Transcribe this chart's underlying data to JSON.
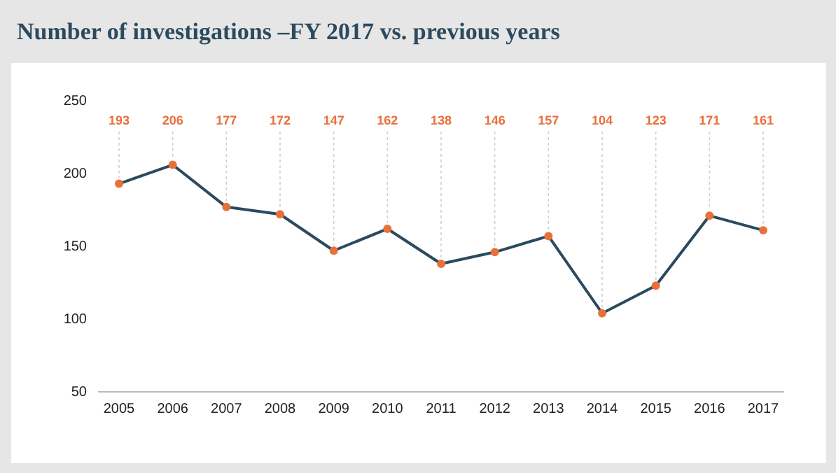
{
  "chart_data": {
    "type": "line",
    "title": "Number of investigations –FY 2017 vs. previous years",
    "categories": [
      "2005",
      "2006",
      "2007",
      "2008",
      "2009",
      "2010",
      "2011",
      "2012",
      "2013",
      "2014",
      "2015",
      "2016",
      "2017"
    ],
    "series": [
      {
        "color": "#2b4a5e",
        "values": [
          193,
          206,
          177,
          172,
          147,
          162,
          138,
          146,
          157,
          104,
          123,
          171,
          161
        ],
        "value_labels": [
          "193",
          "206",
          "177",
          "172",
          "147",
          "162",
          "138",
          "146",
          "157",
          "104",
          "123",
          "171",
          "161"
        ]
      }
    ],
    "ylim": [
      50,
      250
    ],
    "yticks": [
      50,
      100,
      150,
      200,
      250
    ],
    "grid": false,
    "marker": "circle"
  }
}
